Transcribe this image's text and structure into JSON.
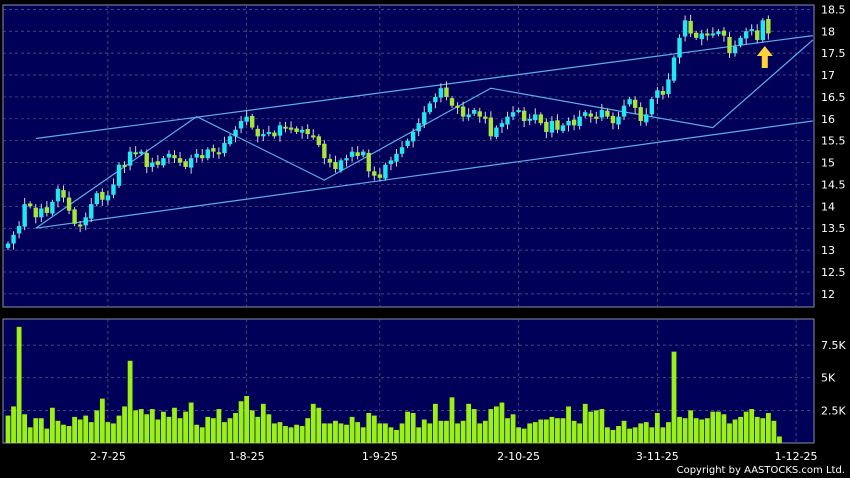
{
  "chart_data": [
    {
      "type": "candlestick",
      "panel": "price",
      "ylim": [
        11.7,
        18.6
      ],
      "y_ticks": [
        "18.5",
        "18",
        "17.5",
        "17",
        "16.5",
        "16",
        "15.5",
        "15",
        "14.5",
        "14",
        "13.5",
        "13",
        "12.5",
        "12"
      ],
      "x_tick_labels": [
        "2-7-25",
        "1-8-25",
        "1-9-25",
        "2-10-25",
        "3-11-25",
        "1-12-25"
      ],
      "x_tick_index": [
        18,
        43,
        67,
        92,
        117,
        142
      ],
      "grid": true,
      "close": [
        13.15,
        13.35,
        13.55,
        14.05,
        14.0,
        13.75,
        13.95,
        13.85,
        14.1,
        14.4,
        14.2,
        13.9,
        13.6,
        13.55,
        13.75,
        14.05,
        14.3,
        14.15,
        14.25,
        14.5,
        14.95,
        14.9,
        15.25,
        15.2,
        15.25,
        14.9,
        15.0,
        14.95,
        15.1,
        15.2,
        15.1,
        15.0,
        14.9,
        15.1,
        15.2,
        15.1,
        15.3,
        15.25,
        15.2,
        15.45,
        15.6,
        15.75,
        15.95,
        16.05,
        15.8,
        15.6,
        15.65,
        15.7,
        15.6,
        15.85,
        15.8,
        15.75,
        15.7,
        15.75,
        15.65,
        15.6,
        15.4,
        15.1,
        15.0,
        14.85,
        15.05,
        15.1,
        15.25,
        15.15,
        15.25,
        14.8,
        14.7,
        14.65,
        14.95,
        15.05,
        15.2,
        15.35,
        15.5,
        15.7,
        15.9,
        16.15,
        16.35,
        16.5,
        16.7,
        16.5,
        16.3,
        16.25,
        16.05,
        16.1,
        16.2,
        16.05,
        16.0,
        15.6,
        15.8,
        15.9,
        16.05,
        16.15,
        16.2,
        15.95,
        16.0,
        16.1,
        15.9,
        15.7,
        15.95,
        15.75,
        15.85,
        15.95,
        15.85,
        16.05,
        16.15,
        16.05,
        16.0,
        16.2,
        16.05,
        15.9,
        16.05,
        16.3,
        16.45,
        16.25,
        15.95,
        16.1,
        16.45,
        16.65,
        16.55,
        16.9,
        17.4,
        17.85,
        18.25,
        17.95,
        17.85,
        17.95,
        17.9,
        17.95,
        18.0,
        17.9,
        17.5,
        17.65,
        17.85,
        18.0,
        18.05,
        17.8,
        18.25,
        17.95
      ]
    },
    {
      "type": "bar",
      "panel": "volume",
      "ylim": [
        0,
        9500
      ],
      "y_ticks": [
        "7.5K",
        "5K",
        "2.5K"
      ],
      "y_tick_values": [
        7500,
        5000,
        2500
      ],
      "x_tick_labels": [
        "2-7-25",
        "1-8-25",
        "1-9-25",
        "2-10-25",
        "3-11-25",
        "1-12-25"
      ],
      "values": [
        2100,
        2800,
        8900,
        2200,
        1200,
        1900,
        1900,
        1100,
        2700,
        1700,
        1400,
        1300,
        2000,
        1800,
        2100,
        1600,
        2500,
        3400,
        1600,
        1500,
        2100,
        2800,
        6300,
        2500,
        2600,
        2200,
        2600,
        1800,
        2400,
        2000,
        2700,
        1900,
        2400,
        3100,
        1400,
        1200,
        2000,
        1900,
        2600,
        1600,
        1900,
        2300,
        3200,
        3600,
        2500,
        2000,
        3000,
        2200,
        1500,
        1600,
        1300,
        1200,
        1400,
        1300,
        1900,
        3000,
        2700,
        1500,
        1500,
        1700,
        1500,
        1400,
        2000,
        1600,
        1200,
        2300,
        2100,
        1500,
        1500,
        1200,
        1000,
        1500,
        2400,
        2300,
        1200,
        1800,
        1500,
        3000,
        1700,
        1700,
        3500,
        1500,
        1700,
        3000,
        2600,
        1500,
        1700,
        2600,
        2800,
        3100,
        1900,
        2200,
        1200,
        1100,
        1500,
        1600,
        1800,
        1800,
        2000,
        1900,
        1900,
        2800,
        1700,
        1500,
        3000,
        2400,
        2500,
        2600,
        1200,
        1000,
        1300,
        1700,
        1100,
        1200,
        1500,
        1600,
        1200,
        2300,
        1200,
        1600,
        7000,
        2000,
        1900,
        2500,
        1900,
        1800,
        1900,
        2400,
        2400,
        2200,
        1500,
        1800,
        2000,
        2400,
        2600,
        2000,
        1900,
        2300,
        1700,
        500
      ]
    }
  ],
  "trendlines": {
    "upper_channel": [
      [
        5,
        15.55
      ],
      [
        145,
        17.9
      ]
    ],
    "lower_channel": [
      [
        5,
        13.5
      ],
      [
        145,
        15.95
      ]
    ],
    "zigzag": [
      [
        5,
        13.5
      ],
      [
        34,
        16.05
      ],
      [
        57,
        14.6
      ],
      [
        87,
        16.7
      ],
      [
        127,
        15.8
      ],
      [
        145,
        17.8
      ]
    ]
  },
  "colors": {
    "background": "#000000",
    "plot": "#000058",
    "grid": "#5a6080",
    "up": "#22e7f3",
    "down": "#a8e43c",
    "volume": "#9bf016",
    "line": "#5aaee6",
    "arrow": "#ffd23a",
    "text": "#ffffff"
  },
  "footer": {
    "copyright": "Copyright by AASTOCKS.com Ltd."
  }
}
